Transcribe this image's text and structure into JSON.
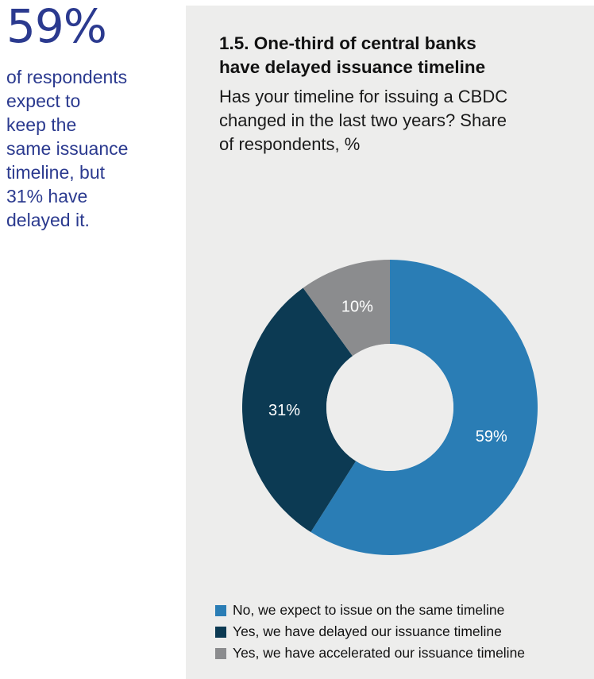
{
  "sidebar": {
    "stat": "59%",
    "text": "of respondents\nexpect to\nkeep the\nsame issuance\ntimeline, but\n31% have\ndelayed it."
  },
  "panel": {
    "title": "1.5. One-third of central banks\nhave delayed issuance timeline",
    "subtitle": "Has your timeline for issuing a CBDC\nchanged in the last two years? Share\nof respondents, %"
  },
  "chart_data": {
    "type": "pie",
    "style": "donut",
    "title": "1.5. One-third of central banks have delayed issuance timeline",
    "subtitle": "Has your timeline for issuing a CBDC changed in the last two years? Share of respondents, %",
    "categories": [
      "No, we expect to issue on the same timeline",
      "Yes, we have delayed our issuance timeline",
      "Yes, we have accelerated our issuance timeline"
    ],
    "values": [
      59,
      31,
      10
    ],
    "labels": [
      "59%",
      "31%",
      "10%"
    ],
    "colors": [
      "#2a7db5",
      "#0c3a53",
      "#8b8c8e"
    ],
    "legend_position": "bottom-left"
  }
}
